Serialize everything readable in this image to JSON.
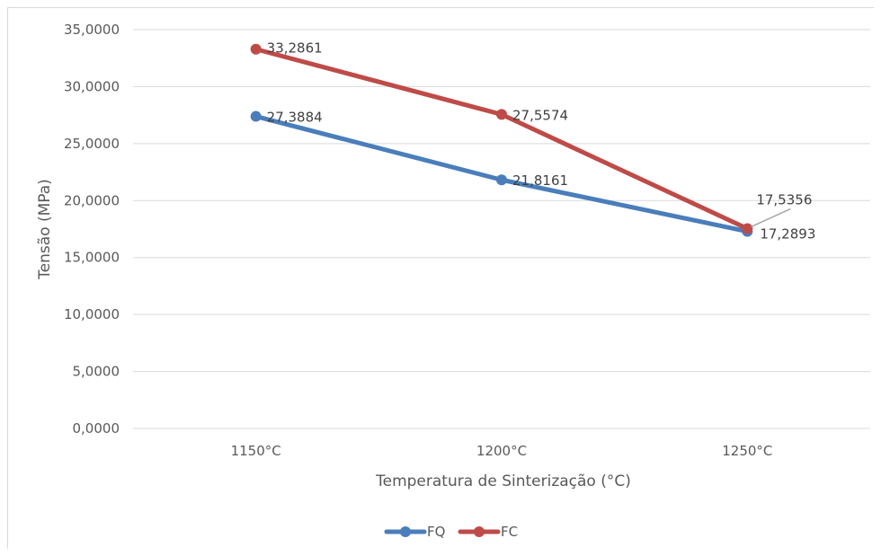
{
  "chart_data": {
    "type": "line",
    "title": "",
    "xlabel": "Temperatura de Sinterização (°C)",
    "ylabel": "Tensão (MPa)",
    "categories": [
      "1150°C",
      "1200°C",
      "1250°C"
    ],
    "ylim": [
      0,
      35
    ],
    "ytick_step": 5,
    "ytick_labels": [
      "0,0000",
      "5,0000",
      "10,0000",
      "15,0000",
      "20,0000",
      "25,0000",
      "30,0000",
      "35,0000"
    ],
    "grid": true,
    "legend_position": "bottom",
    "series": [
      {
        "name": "FQ",
        "color": "#4a7ebb",
        "values": [
          27.3884,
          21.8161,
          17.2893
        ],
        "labels": [
          "27,3884",
          "21,8161",
          "17,2893"
        ]
      },
      {
        "name": "FC",
        "color": "#be4b48",
        "values": [
          33.2861,
          27.5574,
          17.5356
        ],
        "labels": [
          "33,2861",
          "27,5574",
          "17,5356"
        ]
      }
    ]
  }
}
